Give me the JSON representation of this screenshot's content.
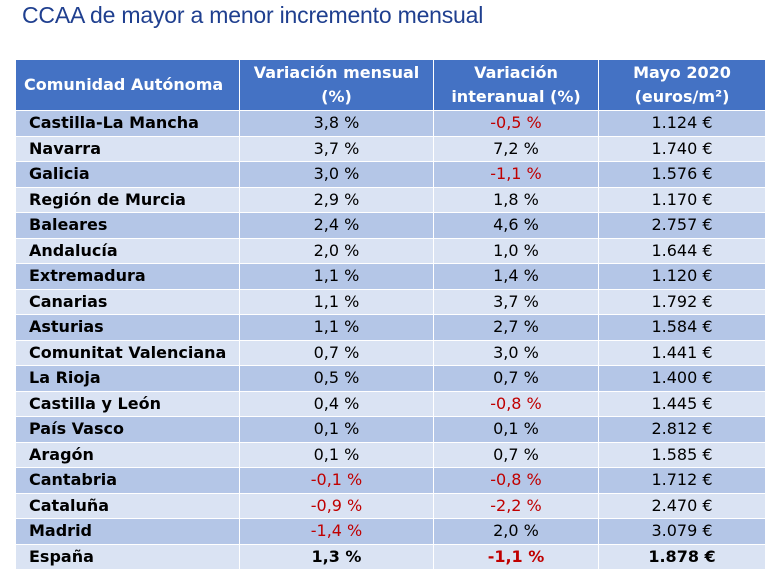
{
  "title": "CCAA de mayor a menor incremento mensual",
  "colors": {
    "header_bg": "#4472c4",
    "row_dark": "#b4c6e7",
    "row_light": "#dae3f3",
    "negative": "#c00000",
    "title": "#1f3f8f"
  },
  "table": {
    "headers": [
      "Comunidad Autónoma",
      "Variación mensual (%)",
      "Variación interanual (%)",
      "Mayo 2020 (euros/m²)"
    ],
    "rows": [
      [
        "Castilla-La Mancha",
        "3,8 %",
        "-0,5 %",
        "1.124 €"
      ],
      [
        "Navarra",
        "3,7 %",
        "7,2 %",
        "1.740 €"
      ],
      [
        "Galicia",
        "3,0 %",
        "-1,1 %",
        "1.576 €"
      ],
      [
        "Región de Murcia",
        "2,9 %",
        "1,8 %",
        "1.170 €"
      ],
      [
        "Baleares",
        "2,4 %",
        "4,6 %",
        "2.757 €"
      ],
      [
        "Andalucía",
        "2,0 %",
        "1,0 %",
        "1.644 €"
      ],
      [
        "Extremadura",
        "1,1 %",
        "1,4 %",
        "1.120 €"
      ],
      [
        "Canarias",
        "1,1 %",
        "3,7 %",
        "1.792 €"
      ],
      [
        "Asturias",
        "1,1 %",
        "2,7 %",
        "1.584 €"
      ],
      [
        "Comunitat Valenciana",
        "0,7 %",
        "3,0 %",
        "1.441 €"
      ],
      [
        "La Rioja",
        "0,5 %",
        "0,7 %",
        "1.400 €"
      ],
      [
        "Castilla y León",
        "0,4 %",
        "-0,8 %",
        "1.445 €"
      ],
      [
        "País Vasco",
        "0,1 %",
        "0,1 %",
        "2.812 €"
      ],
      [
        "Aragón",
        "0,1 %",
        "0,7 %",
        "1.585 €"
      ],
      [
        "Cantabria",
        "-0,1 %",
        "-0,8 %",
        "1.712 €"
      ],
      [
        "Cataluña",
        "-0,9 %",
        "-2,2 %",
        "2.470 €"
      ],
      [
        "Madrid",
        "-1,4 %",
        "2,0 %",
        "3.079 €"
      ]
    ],
    "total": [
      "España",
      "1,3 %",
      "-1,1 %",
      "1.878 €"
    ]
  }
}
